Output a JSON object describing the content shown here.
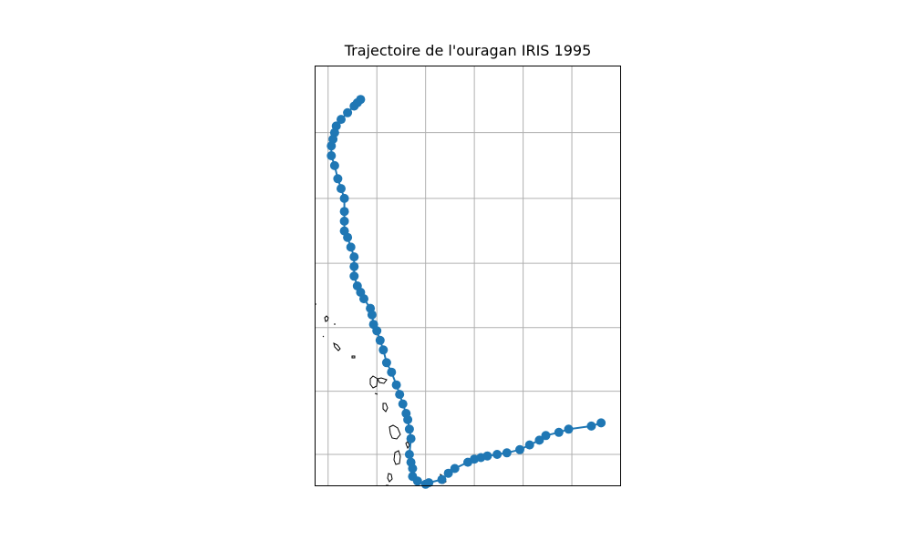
{
  "chart_data": {
    "type": "map-track",
    "title": "Trajectoire de l'ouragan IRIS 1995",
    "xlabel": "",
    "ylabel": "",
    "grid": true,
    "projection": "Mercator",
    "xlim": [
      -62.4,
      -53.0
    ],
    "ylim": [
      10.0,
      23.0
    ],
    "gridlines_lon": [
      -62,
      -60.5,
      -59,
      -57.5,
      -56,
      -54.5,
      -53
    ],
    "gridlines_lat": [
      11,
      13,
      15,
      17,
      19,
      21
    ],
    "series": [
      {
        "marker_color": "#1f77b4",
        "x": [
          -61.0,
          -61.1,
          -61.2,
          -61.4,
          -61.6,
          -61.75,
          -61.8,
          -61.85,
          -61.9,
          -61.9,
          -61.8,
          -61.7,
          -61.6,
          -61.5,
          -61.5,
          -61.5,
          -61.5,
          -61.4,
          -61.3,
          -61.2,
          -61.2,
          -61.2,
          -61.1,
          -61.0,
          -60.9,
          -60.7,
          -60.65,
          -60.6,
          -60.5,
          -60.4,
          -60.3,
          -60.2,
          -60.05,
          -59.9,
          -59.8,
          -59.7,
          -59.6,
          -59.55,
          -59.5,
          -59.45,
          -59.5,
          -59.45,
          -59.4,
          -59.4,
          -59.25,
          -59.0,
          -58.9,
          -58.5,
          -58.3,
          -58.1,
          -57.7,
          -57.5,
          -57.3,
          -57.1,
          -56.8,
          -56.5,
          -56.1,
          -55.8,
          -55.5,
          -55.3,
          -54.9,
          -54.6,
          -53.9,
          -53.6
        ],
        "y": [
          22.0,
          21.9,
          21.8,
          21.6,
          21.4,
          21.2,
          21.0,
          20.8,
          20.6,
          20.3,
          20.0,
          19.6,
          19.3,
          19.0,
          18.6,
          18.3,
          18.0,
          17.8,
          17.5,
          17.2,
          16.9,
          16.6,
          16.3,
          16.1,
          15.9,
          15.6,
          15.4,
          15.1,
          14.9,
          14.6,
          14.3,
          13.9,
          13.6,
          13.2,
          12.9,
          12.6,
          12.3,
          12.1,
          11.8,
          11.5,
          11.0,
          10.75,
          10.55,
          10.3,
          10.15,
          10.05,
          10.1,
          10.2,
          10.4,
          10.55,
          10.75,
          10.85,
          10.9,
          10.95,
          11.0,
          11.05,
          11.15,
          11.3,
          11.45,
          11.6,
          11.7,
          11.8,
          11.9,
          12.0
        ]
      }
    ]
  }
}
